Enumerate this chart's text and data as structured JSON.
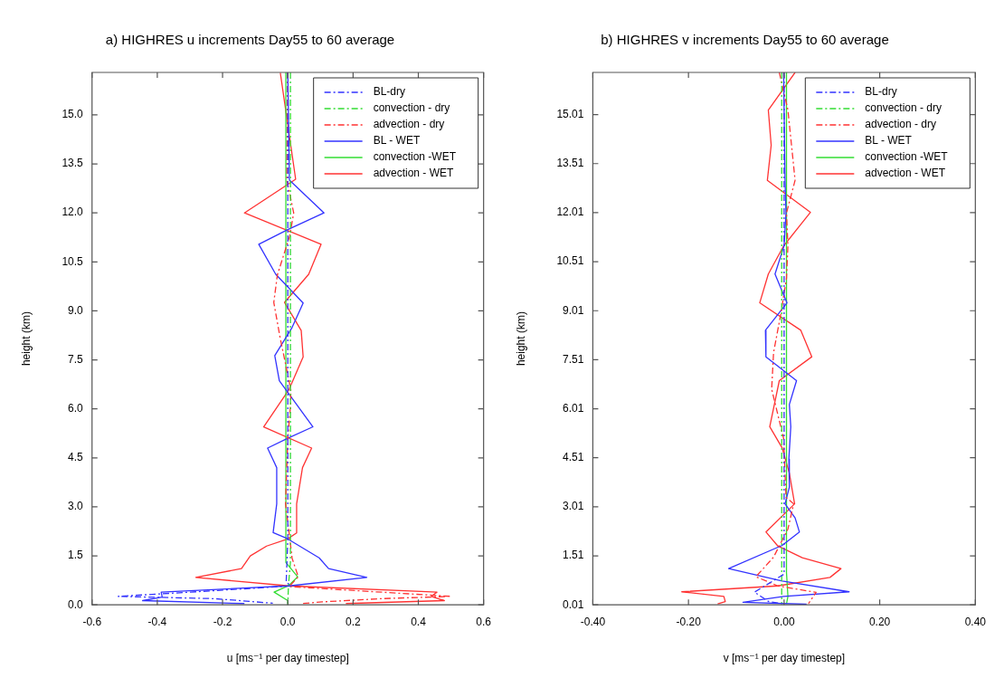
{
  "chart_data": [
    {
      "type": "line",
      "title": "a) HIGHRES u increments Day55 to 60 average",
      "xlabel": "u [ms⁻¹ per day timestep]",
      "ylabel": "height (km)",
      "xlim": [
        -0.6,
        0.6
      ],
      "xticks": [
        -0.6,
        -0.4,
        -0.2,
        {
          "value": 0,
          "label": "0.0"
        },
        0.2,
        0.4,
        0.6
      ],
      "ylim": [
        0,
        16.3
      ],
      "yticks": [
        {
          "value": 0,
          "label": "0.0"
        },
        1.5,
        {
          "value": 3,
          "label": "3.0"
        },
        4.5,
        {
          "value": 6,
          "label": "6.0"
        },
        7.5,
        {
          "value": 9,
          "label": "9.0"
        },
        10.5,
        {
          "value": 12,
          "label": "12.0"
        },
        13.5,
        {
          "value": 15,
          "label": "15.0"
        }
      ],
      "grid": false,
      "legend": "top right",
      "marker": "none",
      "series": [
        {
          "name": "BL-dry",
          "color": "#3333ff",
          "line_style": "dashed",
          "x": [
            0.0,
            0.0,
            -0.005,
            0.01,
            -0.298,
            -0.52,
            -0.225,
            -0.046
          ],
          "values": [
            16.3,
            2.0,
            0.7,
            0.58,
            0.39,
            0.26,
            0.19,
            0.05
          ]
        },
        {
          "name": "convection - dry",
          "color": "#33dd33",
          "line_style": "dashed",
          "x": [
            0.008,
            0.008,
            0.002,
            0.0
          ],
          "values": [
            16.3,
            1.3,
            0.6,
            0.05
          ]
        },
        {
          "name": "advection - dry",
          "color": "#ff3333",
          "line_style": "dashed",
          "x": [
            0.0,
            -0.003,
            0.018,
            0.006,
            -0.032,
            -0.043,
            -0.024,
            0.009,
            0.009,
            0.0,
            -0.007,
            0.004,
            0.013,
            0.032,
            0.004,
            0.5,
            0.288,
            0.105,
            0.041
          ],
          "values": [
            16.3,
            13.0,
            12.0,
            11.3,
            10.1,
            9.26,
            8.2,
            6.6,
            6.2,
            5.1,
            3.09,
            2.2,
            1.43,
            0.86,
            0.56,
            0.26,
            0.19,
            0.09,
            0.04
          ]
        },
        {
          "name": "BL - WET",
          "color": "#3333ff",
          "line_style": "solid",
          "x": [
            0.0,
            0.005,
            0.111,
            0.0,
            -0.089,
            -0.037,
            0.047,
            0.013,
            -0.04,
            -0.026,
            0.077,
            0.0,
            -0.062,
            -0.034,
            -0.034,
            -0.045,
            -0.002,
            0.096,
            0.125,
            0.242,
            0.004,
            -0.388,
            -0.385,
            -0.445,
            -0.133
          ],
          "values": [
            16.29,
            13.0,
            12.0,
            11.49,
            11.04,
            10.12,
            9.24,
            8.49,
            7.63,
            6.86,
            5.45,
            5.1,
            4.8,
            4.2,
            3.09,
            2.21,
            2.03,
            1.44,
            1.11,
            0.84,
            0.58,
            0.39,
            0.24,
            0.13,
            0.04
          ]
        },
        {
          "name": "convection -WET",
          "color": "#33dd33",
          "line_style": "solid",
          "x": [
            -0.006,
            -0.006,
            0.03,
            0.004,
            -0.042,
            0.0,
            0.0
          ],
          "values": [
            16.3,
            1.3,
            0.86,
            0.6,
            0.39,
            0.13,
            0.01
          ]
        },
        {
          "name": "advection - WET",
          "color": "#ff3333",
          "line_style": "solid",
          "x": [
            -0.023,
            0.024,
            -0.133,
            0.102,
            0.064,
            -0.01,
            0.041,
            0.047,
            0.004,
            -0.074,
            0.073,
            0.045,
            0.027,
            0.027,
            -0.002,
            -0.065,
            -0.115,
            -0.142,
            -0.282,
            0.004,
            0.457,
            0.44,
            0.48,
            0.178
          ],
          "values": [
            16.29,
            13.03,
            12.0,
            11.04,
            10.12,
            9.26,
            8.4,
            7.59,
            6.6,
            5.45,
            4.8,
            4.2,
            3.09,
            2.2,
            2.01,
            1.8,
            1.5,
            1.11,
            0.84,
            0.58,
            0.39,
            0.26,
            0.13,
            0.04
          ]
        }
      ]
    },
    {
      "type": "line",
      "title": "b) HIGHRES v increments Day55 to 60 average",
      "xlabel": "v [ms⁻¹ per day timestep]",
      "ylabel": "height (km)",
      "xlim": [
        -0.4,
        0.4
      ],
      "xticks": [
        {
          "value": -0.4,
          "label": "-0.40"
        },
        {
          "value": -0.2,
          "label": "-0.20"
        },
        {
          "value": 0,
          "label": "0.00"
        },
        {
          "value": 0.2,
          "label": "0.20"
        },
        {
          "value": 0.4,
          "label": "0.40"
        }
      ],
      "ylim": [
        0.01,
        16.3
      ],
      "yticks": [
        0.01,
        1.51,
        3.01,
        4.51,
        6.01,
        7.51,
        9.01,
        10.51,
        12.01,
        13.51,
        15.01
      ],
      "grid": false,
      "legend": "top right",
      "marker": "none",
      "series": [
        {
          "name": "BL-dry",
          "color": "#3333ff",
          "line_style": "dashed",
          "x": [
            0.0,
            0.0,
            -0.038,
            -0.062,
            -0.032,
            0.0
          ],
          "values": [
            16.3,
            0.95,
            0.61,
            0.4,
            0.11,
            0.04
          ]
        },
        {
          "name": "convection - dry",
          "color": "#33dd33",
          "line_style": "dashed",
          "x": [
            -0.005,
            -0.005,
            -0.005
          ],
          "values": [
            16.3,
            1.0,
            0.05
          ]
        },
        {
          "name": "advection - dry",
          "color": "#ff3333",
          "line_style": "dashed",
          "x": [
            -0.01,
            0.008,
            0.023,
            0.005,
            0.008,
            0.005,
            -0.007,
            -0.022,
            -0.026,
            -0.001,
            0.004,
            0.02,
            0.008,
            -0.022,
            -0.059,
            -0.013,
            0.067,
            0.051
          ],
          "values": [
            16.3,
            15.15,
            13.0,
            12.0,
            11.0,
            10.0,
            8.9,
            7.73,
            6.61,
            5.1,
            3.3,
            3.1,
            2.33,
            1.47,
            0.87,
            0.59,
            0.39,
            0.05
          ]
        },
        {
          "name": "BL - WET",
          "color": "#3333ff",
          "line_style": "solid",
          "x": [
            -0.001,
            0.002,
            0.004,
            0.0,
            -0.019,
            0.006,
            -0.039,
            -0.038,
            0.026,
            0.011,
            0.014,
            0.01,
            0.011,
            0.002,
            0.023,
            0.032,
            -0.004,
            -0.116,
            -0.004,
            0.136,
            -0.001,
            -0.086,
            0.047
          ],
          "values": [
            16.3,
            13.0,
            12.0,
            11.0,
            10.13,
            9.25,
            8.41,
            7.6,
            6.87,
            6.14,
            5.46,
            4.47,
            3.61,
            3.1,
            2.67,
            2.24,
            1.83,
            1.12,
            0.74,
            0.41,
            0.27,
            0.09,
            0.03
          ]
        },
        {
          "name": "convection -WET",
          "color": "#33dd33",
          "line_style": "solid",
          "x": [
            0.005,
            0.005,
            0.008,
            0.005
          ],
          "values": [
            16.3,
            1.0,
            0.27,
            0.04
          ]
        },
        {
          "name": "advection - WET",
          "color": "#ff3333",
          "line_style": "solid",
          "x": [
            0.023,
            -0.033,
            -0.027,
            -0.035,
            0.055,
            -0.001,
            -0.033,
            -0.051,
            0.035,
            0.058,
            -0.01,
            -0.03,
            -0.004,
            0.011,
            0.022,
            -0.038,
            -0.013,
            0.038,
            0.119,
            0.096,
            -0.013,
            -0.214,
            -0.126,
            -0.123,
            -0.139
          ],
          "values": [
            16.3,
            15.15,
            14.07,
            13.0,
            12.02,
            10.99,
            10.13,
            9.25,
            8.41,
            7.6,
            6.87,
            5.46,
            4.81,
            4.04,
            3.1,
            2.24,
            1.81,
            1.45,
            1.12,
            0.85,
            0.59,
            0.41,
            0.27,
            0.11,
            0.04
          ]
        }
      ]
    }
  ]
}
